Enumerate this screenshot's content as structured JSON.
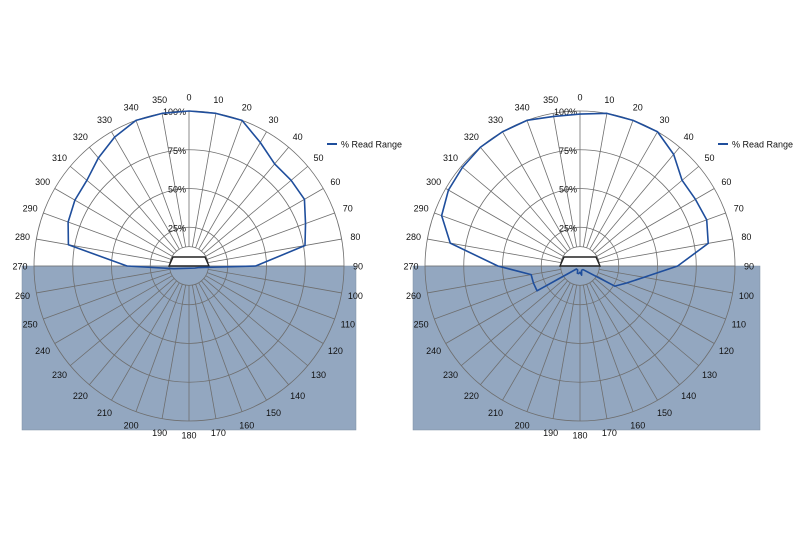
{
  "chart_data": [
    {
      "type": "polar-line",
      "angle_ticks": [
        "0",
        "10",
        "20",
        "30",
        "40",
        "50",
        "60",
        "70",
        "80",
        "90",
        "100",
        "110",
        "120",
        "130",
        "140",
        "150",
        "160",
        "170",
        "180",
        "190",
        "200",
        "210",
        "220",
        "230",
        "240",
        "250",
        "260",
        "270",
        "280",
        "290",
        "300",
        "310",
        "320",
        "330",
        "340",
        "350"
      ],
      "radial_ticks": [
        "25%",
        "50%",
        "75%",
        "100%"
      ],
      "rlim": [
        0,
        100
      ],
      "grid": true,
      "legend_position": "top-right",
      "shaded_region": "lower half (90 to 270 degrees)",
      "series": [
        {
          "name": "% Read Range",
          "color": "#1f4e9c",
          "angles": [
            0,
            10,
            20,
            30,
            40,
            50,
            60,
            70,
            80,
            90,
            100,
            110,
            260,
            270,
            280,
            290,
            300,
            310,
            320,
            330,
            340,
            350
          ],
          "values": [
            100,
            100,
            100,
            92,
            86,
            86,
            86,
            80,
            76,
            43,
            6,
            4,
            10,
            40,
            79,
            83,
            85,
            86,
            91,
            96,
            100,
            100
          ]
        }
      ]
    },
    {
      "type": "polar-line",
      "angle_ticks": [
        "0",
        "10",
        "20",
        "30",
        "40",
        "50",
        "60",
        "70",
        "80",
        "90",
        "100",
        "110",
        "120",
        "130",
        "140",
        "150",
        "160",
        "170",
        "180",
        "190",
        "200",
        "210",
        "220",
        "230",
        "240",
        "250",
        "260",
        "270",
        "280",
        "290",
        "300",
        "310",
        "320",
        "330",
        "340",
        "350"
      ],
      "radial_ticks": [
        "25%",
        "50%",
        "75%",
        "100%"
      ],
      "rlim": [
        0,
        100
      ],
      "grid": true,
      "legend_position": "top-right",
      "shaded_region": "lower half (90 to 270 degrees)",
      "series": [
        {
          "name": "% Read Range",
          "color": "#1f4e9c",
          "angles": [
            0,
            10,
            20,
            30,
            40,
            50,
            60,
            70,
            80,
            90,
            100,
            110,
            120,
            140,
            160,
            170,
            180,
            190,
            200,
            210,
            220,
            230,
            240,
            250,
            260,
            270,
            280,
            290,
            300,
            310,
            320,
            330,
            340,
            350
          ],
          "values": [
            98,
            100,
            100,
            100,
            94,
            86,
            86,
            87,
            84,
            63,
            42,
            32,
            26,
            3,
            3,
            6,
            4,
            5,
            5,
            3,
            3,
            3,
            32,
            32,
            32,
            53,
            85,
            95,
            98,
            99,
            100,
            100,
            100,
            98
          ]
        }
      ]
    }
  ]
}
